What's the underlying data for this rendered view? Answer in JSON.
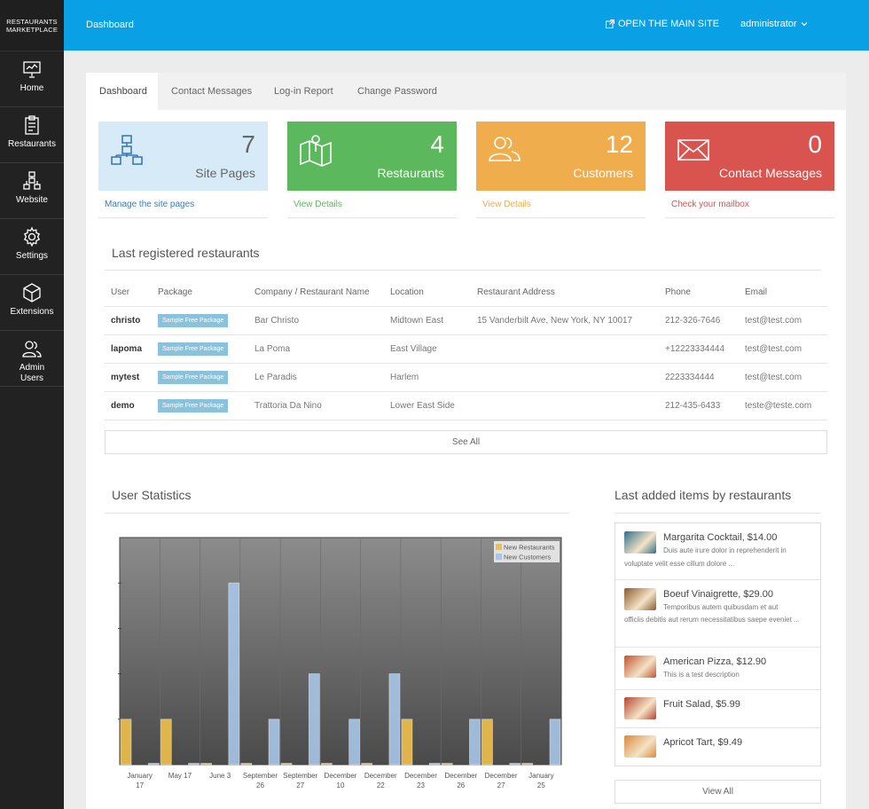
{
  "brand": {
    "line1": "RESTAURANTS",
    "line2": "MARKETPLACE"
  },
  "sidebar": {
    "items": [
      {
        "label": "Home",
        "icon": "presentation-icon"
      },
      {
        "label": "Restaurants",
        "icon": "clipboard-icon"
      },
      {
        "label": "Website",
        "icon": "sitemap-icon"
      },
      {
        "label": "Settings",
        "icon": "gear-icon"
      },
      {
        "label": "Extensions",
        "icon": "cube-icon"
      },
      {
        "label": "Admin",
        "label2": "Users",
        "icon": "users-icon"
      }
    ]
  },
  "topbar": {
    "breadcrumb": "Dashboard",
    "open_site": "OPEN THE MAIN SITE",
    "user": "administrator",
    "color": "#0aa0e6"
  },
  "tabs": [
    {
      "label": "Dashboard",
      "active": true
    },
    {
      "label": "Contact Messages"
    },
    {
      "label": "Log-in Report"
    },
    {
      "label": "Change Password"
    }
  ],
  "stats": [
    {
      "value": "7",
      "label": "Site Pages",
      "link": "Manage the site pages",
      "color": "#d6eaf8",
      "icon": "sitemap-icon"
    },
    {
      "value": "4",
      "label": "Restaurants",
      "link": "View Details",
      "color": "#5cb85c",
      "icon": "map-pin-icon"
    },
    {
      "value": "12",
      "label": "Customers",
      "link": "View Details",
      "color": "#f0ad4e",
      "icon": "users-icon"
    },
    {
      "value": "0",
      "label": "Contact Messages",
      "link": "Check your mailbox",
      "color": "#d9534f",
      "icon": "envelope-icon"
    }
  ],
  "restaurants": {
    "title": "Last registered restaurants",
    "columns": [
      "User",
      "Package",
      "Company / Restaurant Name",
      "Location",
      "Restaurant Address",
      "Phone",
      "Email"
    ],
    "rows": [
      [
        "christo",
        "Sample Free Package",
        "Bar Christo",
        "Midtown East",
        "15 Vanderbilt Ave, New York, NY 10017",
        "212-326-7646",
        "test@test.com"
      ],
      [
        "lapoma",
        "Sample Free Package",
        "La Poma",
        "East Village",
        "",
        "+12223334444",
        "test@test.com"
      ],
      [
        "mytest",
        "Sample Free Package",
        "Le Paradis",
        "Harlem",
        "",
        "2223334444",
        "test@test.com"
      ],
      [
        "demo",
        "Sample Free Package",
        "Trattoria Da Nino",
        "Lower East Side",
        "",
        "212-435-6433",
        "teste@teste.com"
      ]
    ],
    "see_all": "See All"
  },
  "user_stats": {
    "title": "User Statistics"
  },
  "chart_data": {
    "type": "bar",
    "categories": [
      "January 17",
      "May 17",
      "June 3",
      "September 26",
      "September 27",
      "December 10",
      "December 22",
      "December 23",
      "December 26",
      "December 27",
      "January 25"
    ],
    "series": [
      {
        "name": "New Restaurants",
        "values": [
          1,
          1,
          0,
          0,
          0,
          0,
          0,
          1,
          0,
          1,
          0
        ],
        "color": "#f0c04a"
      },
      {
        "name": "New Customers",
        "values": [
          0,
          0,
          4,
          1,
          2,
          1,
          2,
          0,
          1,
          0,
          1
        ],
        "color": "#a9c6e8"
      }
    ],
    "ylim": [
      0,
      5
    ],
    "legend": "top-right",
    "grid": true
  },
  "items": {
    "title": "Last added items by restaurants",
    "list": [
      {
        "name": "Margarita Cocktail, $14.00",
        "desc1": "Duis aute irure dolor in reprehenderit in",
        "desc2": "voluptate velit esse cillum dolore ...",
        "thumb": "#2f6f8a"
      },
      {
        "name": "Boeuf Vinaigrette, $29.00",
        "desc1": "Temporibus autem quibusdam et aut",
        "desc2": "officiis debitis aut rerum necessitatibus saepe eveniet ...",
        "thumb": "#8a5a2f"
      },
      {
        "name": "American Pizza, $12.90",
        "desc1": "This is a test description",
        "desc2": "",
        "thumb": "#c0532e"
      },
      {
        "name": "Fruit Salad, $5.99",
        "desc1": "",
        "desc2": "",
        "thumb": "#b8442f"
      },
      {
        "name": "Apricot Tart, $9.49",
        "desc1": "",
        "desc2": "",
        "thumb": "#d98a3a"
      }
    ],
    "view_all": "View All"
  }
}
